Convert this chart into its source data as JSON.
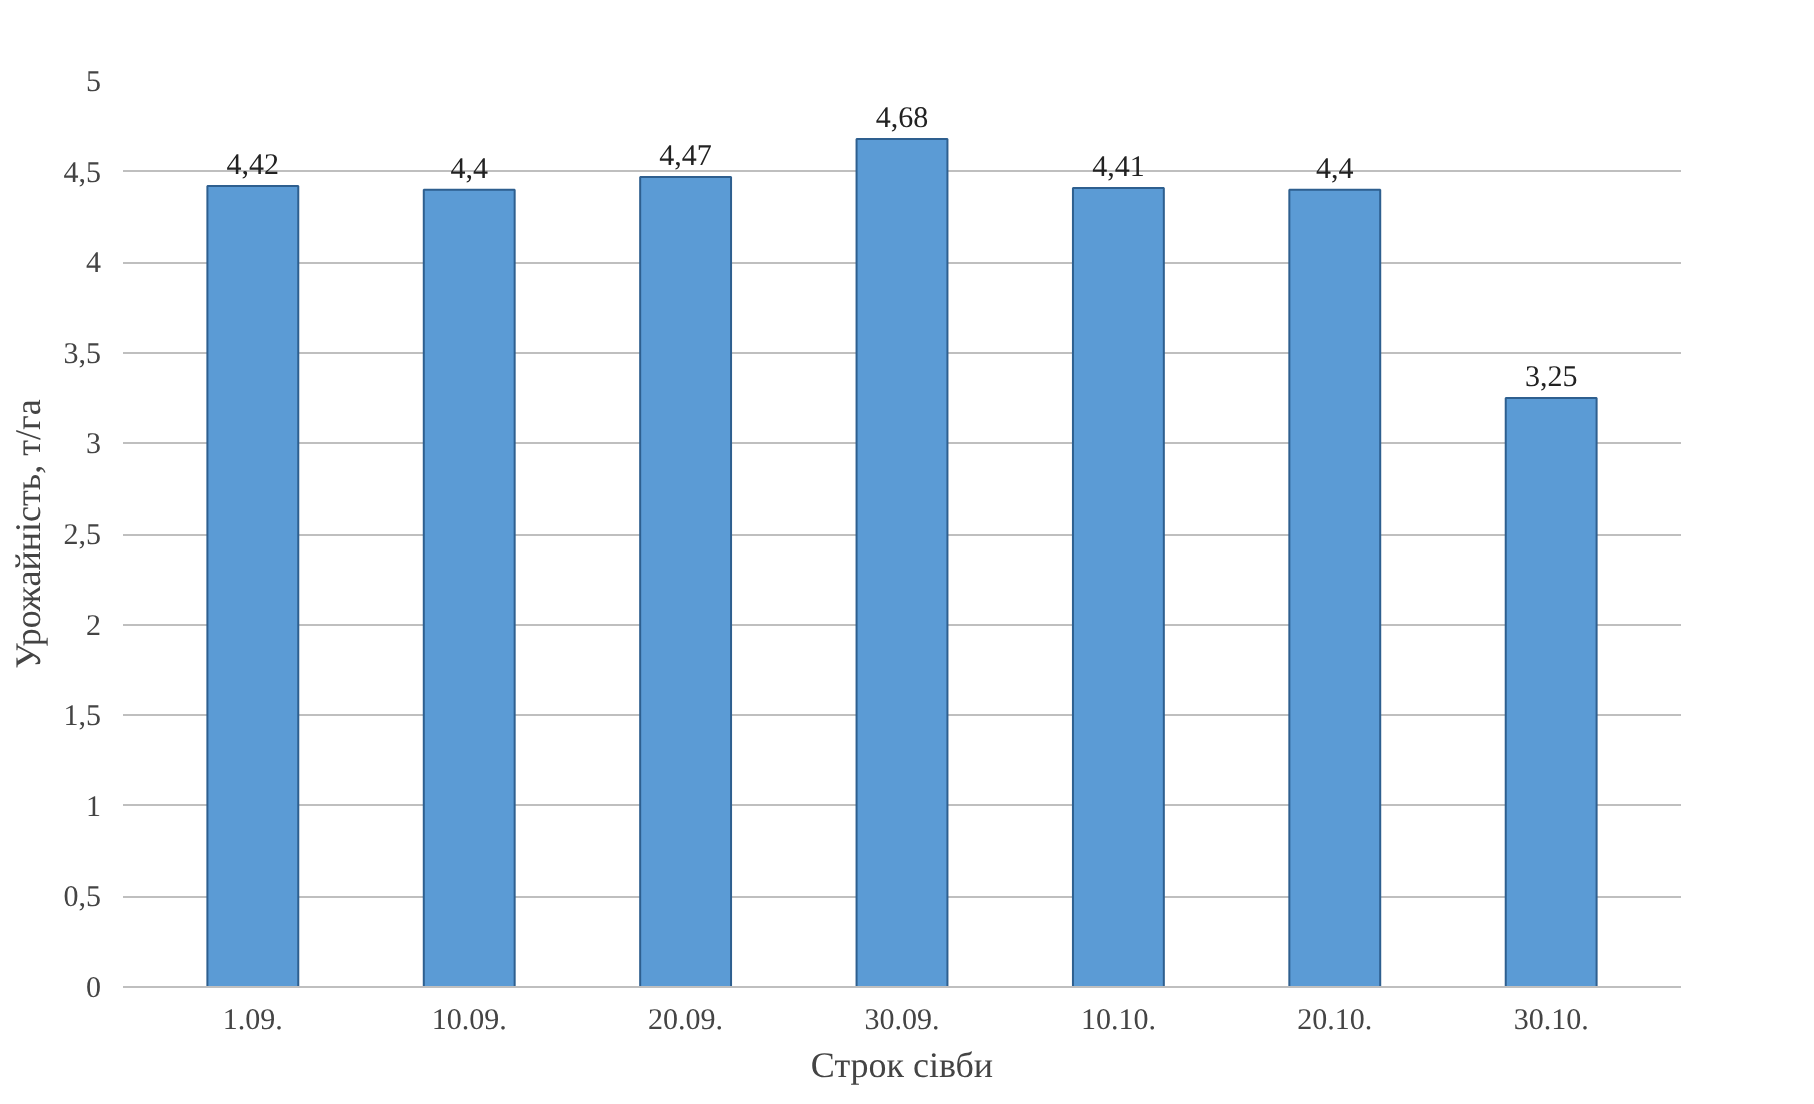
{
  "chart_data": {
    "type": "bar",
    "xlabel": "Строк сівби",
    "ylabel": "Урожайність, т/га",
    "categories": [
      "1.09.",
      "10.09.",
      "20.09.",
      "30.09.",
      "10.10.",
      "20.10.",
      "30.10."
    ],
    "values": [
      4.42,
      4.4,
      4.47,
      4.68,
      4.41,
      4.4,
      3.25
    ],
    "value_labels": [
      "4,42",
      "4,4",
      "4,47",
      "4,68",
      "4,41",
      "4,4",
      "3,25"
    ],
    "color": "#5b9bd5",
    "ylim": [
      0,
      5
    ],
    "yticks": [
      0,
      {
        "value": 0.5,
        "label": "0,5"
      },
      1,
      {
        "value": 1.5,
        "label": "1,5"
      },
      2,
      {
        "value": 2.5,
        "label": "2,5"
      },
      3,
      {
        "value": 3.5,
        "label": "3,5"
      },
      4,
      {
        "value": 4.5,
        "label": "4,5"
      },
      5
    ],
    "grid": "y"
  }
}
